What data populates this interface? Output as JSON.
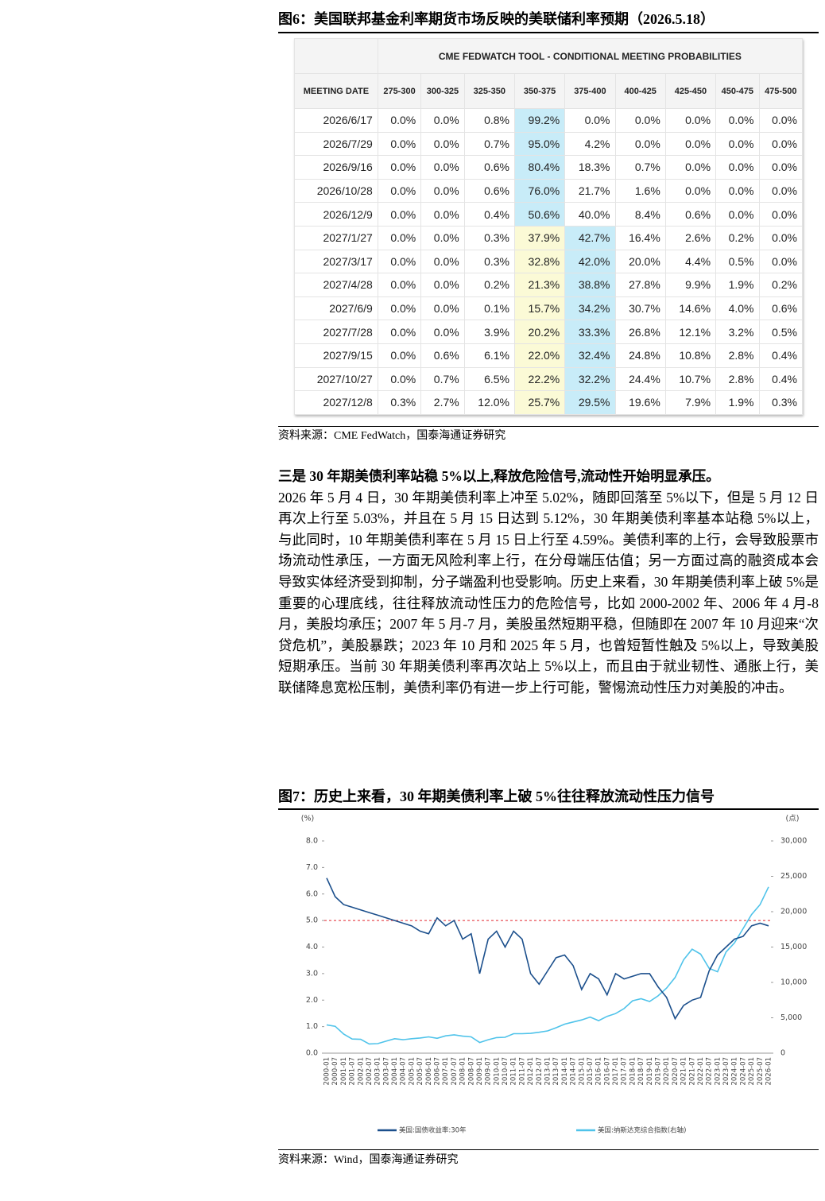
{
  "figure6": {
    "title": "图6：美国联邦基金利率期货市场反映的美联储利率预期（2026.5.18）",
    "table": {
      "title": "CME FEDWATCH TOOL - CONDITIONAL MEETING PROBABILITIES",
      "columns": [
        "MEETING DATE",
        "275-300",
        "300-325",
        "325-350",
        "350-375",
        "375-400",
        "400-425",
        "425-450",
        "450-475",
        "475-500"
      ],
      "rows": [
        [
          "2026/6/17",
          "0.0%",
          "0.0%",
          "0.8%",
          "99.2%",
          "0.0%",
          "0.0%",
          "0.0%",
          "0.0%",
          "0.0%"
        ],
        [
          "2026/7/29",
          "0.0%",
          "0.0%",
          "0.7%",
          "95.0%",
          "4.2%",
          "0.0%",
          "0.0%",
          "0.0%",
          "0.0%"
        ],
        [
          "2026/9/16",
          "0.0%",
          "0.0%",
          "0.6%",
          "80.4%",
          "18.3%",
          "0.7%",
          "0.0%",
          "0.0%",
          "0.0%"
        ],
        [
          "2026/10/28",
          "0.0%",
          "0.0%",
          "0.6%",
          "76.0%",
          "21.7%",
          "1.6%",
          "0.0%",
          "0.0%",
          "0.0%"
        ],
        [
          "2026/12/9",
          "0.0%",
          "0.0%",
          "0.4%",
          "50.6%",
          "40.0%",
          "8.4%",
          "0.6%",
          "0.0%",
          "0.0%"
        ],
        [
          "2027/1/27",
          "0.0%",
          "0.0%",
          "0.3%",
          "37.9%",
          "42.7%",
          "16.4%",
          "2.6%",
          "0.2%",
          "0.0%"
        ],
        [
          "2027/3/17",
          "0.0%",
          "0.0%",
          "0.3%",
          "32.8%",
          "42.0%",
          "20.0%",
          "4.4%",
          "0.5%",
          "0.0%"
        ],
        [
          "2027/4/28",
          "0.0%",
          "0.0%",
          "0.2%",
          "21.3%",
          "38.8%",
          "27.8%",
          "9.9%",
          "1.9%",
          "0.2%"
        ],
        [
          "2027/6/9",
          "0.0%",
          "0.0%",
          "0.1%",
          "15.7%",
          "34.2%",
          "30.7%",
          "14.6%",
          "4.0%",
          "0.6%"
        ],
        [
          "2027/7/28",
          "0.0%",
          "0.0%",
          "3.9%",
          "20.2%",
          "33.3%",
          "26.8%",
          "12.1%",
          "3.2%",
          "0.5%"
        ],
        [
          "2027/9/15",
          "0.0%",
          "0.6%",
          "6.1%",
          "22.0%",
          "32.4%",
          "24.8%",
          "10.8%",
          "2.8%",
          "0.4%"
        ],
        [
          "2027/10/27",
          "0.0%",
          "0.7%",
          "6.5%",
          "22.2%",
          "32.2%",
          "24.4%",
          "10.7%",
          "2.8%",
          "0.4%"
        ],
        [
          "2027/12/8",
          "0.3%",
          "2.7%",
          "12.0%",
          "25.7%",
          "29.5%",
          "19.6%",
          "7.9%",
          "1.9%",
          "0.3%"
        ]
      ]
    },
    "source": "资料来源：CME FedWatch，国泰海通证券研究"
  },
  "section": {
    "heading": "三是 30 年期美债利率站稳 5%以上,释放危险信号,流动性开始明显承压。",
    "body": "2026 年 5 月 4 日，30 年期美债利率上冲至 5.02%，随即回落至 5%以下，但是 5 月 12 日再次上行至 5.03%，并且在 5 月 15 日达到 5.12%，30 年期美债利率基本站稳 5%以上，与此同时，10 年期美债利率在 5 月 15 日上行至 4.59%。美债利率的上行，会导致股票市场流动性承压，一方面无风险利率上行，在分母端压估值；另一方面过高的融资成本会导致实体经济受到抑制，分子端盈利也受影响。历史上来看，30 年期美债利率上破 5%是重要的心理底线，往往释放流动性压力的危险信号，比如 2000-2002 年、2006 年 4 月-8 月，美股均承压；2007 年 5 月-7 月，美股虽然短期平稳，但随即在 2007 年 10 月迎来“次贷危机”，美股暴跌；2023 年 10 月和 2025 年 5 月，也曾短暂性触及 5%以上，导致美股短期承压。当前 30 年期美债利率再次站上 5%以上，而且由于就业韧性、通胀上行，美联储降息宽松压制，美债利率仍有进一步上行可能，警惕流动性压力对美股的冲击。"
  },
  "figure7": {
    "title": "图7：历史上来看，30 年期美债利率上破 5%往往释放流动性压力信号",
    "source": "资料来源：Wind，国泰海通证券研究"
  },
  "chart_data": {
    "type": "line",
    "y_label": "(%)",
    "y2_label": "(点)",
    "categories": [
      "2000-01",
      "2000-07",
      "2001-01",
      "2001-07",
      "2002-01",
      "2002-07",
      "2003-01",
      "2003-07",
      "2004-01",
      "2004-07",
      "2005-01",
      "2005-07",
      "2006-01",
      "2006-07",
      "2007-01",
      "2007-07",
      "2008-01",
      "2008-07",
      "2009-01",
      "2009-07",
      "2010-01",
      "2010-07",
      "2011-01",
      "2011-07",
      "2012-01",
      "2012-07",
      "2013-01",
      "2013-07",
      "2014-01",
      "2014-07",
      "2015-01",
      "2015-07",
      "2016-01",
      "2016-07",
      "2017-01",
      "2017-07",
      "2018-01",
      "2018-07",
      "2019-01",
      "2019-07",
      "2020-01",
      "2020-07",
      "2021-01",
      "2021-07",
      "2022-01",
      "2022-07",
      "2023-01",
      "2023-07",
      "2024-01",
      "2024-07",
      "2025-01",
      "2025-07",
      "2026-01"
    ],
    "series": [
      {
        "name": "美国:国债收益率:30年",
        "color": "#1b4f8c",
        "axis": "y",
        "values": [
          6.6,
          5.9,
          5.6,
          5.5,
          5.4,
          5.3,
          5.2,
          5.1,
          5.0,
          4.9,
          4.8,
          4.6,
          4.5,
          5.1,
          4.8,
          5.0,
          4.3,
          4.5,
          3.0,
          4.3,
          4.6,
          4.0,
          4.6,
          4.3,
          3.0,
          2.6,
          3.1,
          3.6,
          3.7,
          3.3,
          2.4,
          3.0,
          2.8,
          2.2,
          3.0,
          2.8,
          2.9,
          3.0,
          3.0,
          2.5,
          2.1,
          1.3,
          1.8,
          2.0,
          2.1,
          3.1,
          3.7,
          4.0,
          4.3,
          4.4,
          4.8,
          4.9,
          4.8
        ]
      },
      {
        "name": "美国:纳斯达克综合指数(右轴)",
        "color": "#4fc3ea",
        "axis": "y2",
        "values": [
          4000,
          3800,
          2700,
          2000,
          1950,
          1300,
          1350,
          1700,
          2050,
          1900,
          2050,
          2150,
          2300,
          2100,
          2450,
          2600,
          2400,
          2300,
          1500,
          1900,
          2200,
          2250,
          2750,
          2750,
          2800,
          2950,
          3150,
          3600,
          4100,
          4400,
          4700,
          5100,
          4600,
          5200,
          5600,
          6300,
          7400,
          7700,
          7300,
          8100,
          9200,
          10700,
          13200,
          14700,
          14000,
          12000,
          11500,
          14300,
          15600,
          17600,
          19600,
          21000,
          23500
        ]
      }
    ],
    "ylim": [
      0,
      8
    ],
    "yticks": [
      {
        "value": 0,
        "label": "0.0"
      },
      {
        "value": 1,
        "label": "1.0"
      },
      {
        "value": 2,
        "label": "2.0"
      },
      {
        "value": 3,
        "label": "3.0"
      },
      {
        "value": 4,
        "label": "4.0"
      },
      {
        "value": 5,
        "label": "5.0"
      },
      {
        "value": 6,
        "label": "6.0"
      },
      {
        "value": 7,
        "label": "7.0"
      },
      {
        "value": 8,
        "label": "8.0"
      }
    ],
    "y2lim": [
      0,
      30000
    ],
    "y2ticks": [
      0,
      {
        "value": 5000,
        "label": "5,000"
      },
      {
        "value": 10000,
        "label": "10,000"
      },
      {
        "value": 15000,
        "label": "15,000"
      },
      {
        "value": 20000,
        "label": "20,000"
      },
      {
        "value": 25000,
        "label": "25,000"
      },
      {
        "value": 30000,
        "label": "30,000"
      }
    ],
    "reference_lines": [
      {
        "value": 5,
        "axis": "y",
        "color": "#e3262d"
      }
    ],
    "legend": "bottom"
  }
}
